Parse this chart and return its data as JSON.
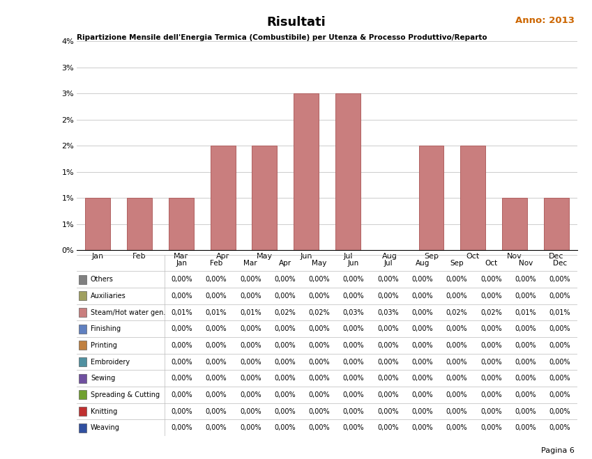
{
  "title": "Risultati",
  "anno": "Anno: 2013",
  "chart_title": "Ripartizione Mensile dell'Energia Termica (Combustibile) per Utenza & Processo Produttivo/Reparto",
  "months": [
    "Jan",
    "Feb",
    "Mar",
    "Apr",
    "May",
    "Jun",
    "Jul",
    "Aug",
    "Sep",
    "Oct",
    "Nov",
    "Dec"
  ],
  "values": [
    0.01,
    0.01,
    0.01,
    0.02,
    0.02,
    0.03,
    0.03,
    0.0,
    0.02,
    0.02,
    0.01,
    0.01
  ],
  "bar_color": "#c97e7e",
  "bar_edge_color": "#b06060",
  "ylim": [
    0,
    0.04
  ],
  "yticks": [
    0.0,
    0.005,
    0.01,
    0.015,
    0.02,
    0.025,
    0.03,
    0.035,
    0.04
  ],
  "ytick_labels": [
    "0%",
    "1%",
    "1%",
    "1%",
    "2%",
    "2%",
    "3%",
    "3%",
    "4%"
  ],
  "footer": "Pagina 6",
  "legend_items": [
    {
      "label": "Others",
      "color": "#808080"
    },
    {
      "label": "Auxiliaries",
      "color": "#a0a060"
    },
    {
      "label": "Steam/Hot water gen.",
      "color": "#c97e7e"
    },
    {
      "label": "Finishing",
      "color": "#6080c0"
    },
    {
      "label": "Printing",
      "color": "#c08040"
    },
    {
      "label": "Embroidery",
      "color": "#5090a0"
    },
    {
      "label": "Sewing",
      "color": "#7050a0"
    },
    {
      "label": "Spreading & Cutting",
      "color": "#70a030"
    },
    {
      "label": "Knitting",
      "color": "#c03030"
    },
    {
      "label": "Weaving",
      "color": "#3050a0"
    }
  ],
  "table_data": {
    "Others": [
      0.0,
      0.0,
      0.0,
      0.0,
      0.0,
      0.0,
      0.0,
      0.0,
      0.0,
      0.0,
      0.0,
      0.0
    ],
    "Auxiliaries": [
      0.0,
      0.0,
      0.0,
      0.0,
      0.0,
      0.0,
      0.0,
      0.0,
      0.0,
      0.0,
      0.0,
      0.0
    ],
    "Steam/Hot water gen.": [
      0.01,
      0.01,
      0.01,
      0.02,
      0.02,
      0.03,
      0.03,
      0.0,
      0.02,
      0.02,
      0.01,
      0.01
    ],
    "Finishing": [
      0.0,
      0.0,
      0.0,
      0.0,
      0.0,
      0.0,
      0.0,
      0.0,
      0.0,
      0.0,
      0.0,
      0.0
    ],
    "Printing": [
      0.0,
      0.0,
      0.0,
      0.0,
      0.0,
      0.0,
      0.0,
      0.0,
      0.0,
      0.0,
      0.0,
      0.0
    ],
    "Embroidery": [
      0.0,
      0.0,
      0.0,
      0.0,
      0.0,
      0.0,
      0.0,
      0.0,
      0.0,
      0.0,
      0.0,
      0.0
    ],
    "Sewing": [
      0.0,
      0.0,
      0.0,
      0.0,
      0.0,
      0.0,
      0.0,
      0.0,
      0.0,
      0.0,
      0.0,
      0.0
    ],
    "Spreading & Cutting": [
      0.0,
      0.0,
      0.0,
      0.0,
      0.0,
      0.0,
      0.0,
      0.0,
      0.0,
      0.0,
      0.0,
      0.0
    ],
    "Knitting": [
      0.0,
      0.0,
      0.0,
      0.0,
      0.0,
      0.0,
      0.0,
      0.0,
      0.0,
      0.0,
      0.0,
      0.0
    ],
    "Weaving": [
      0.0,
      0.0,
      0.0,
      0.0,
      0.0,
      0.0,
      0.0,
      0.0,
      0.0,
      0.0,
      0.0,
      0.0
    ]
  }
}
